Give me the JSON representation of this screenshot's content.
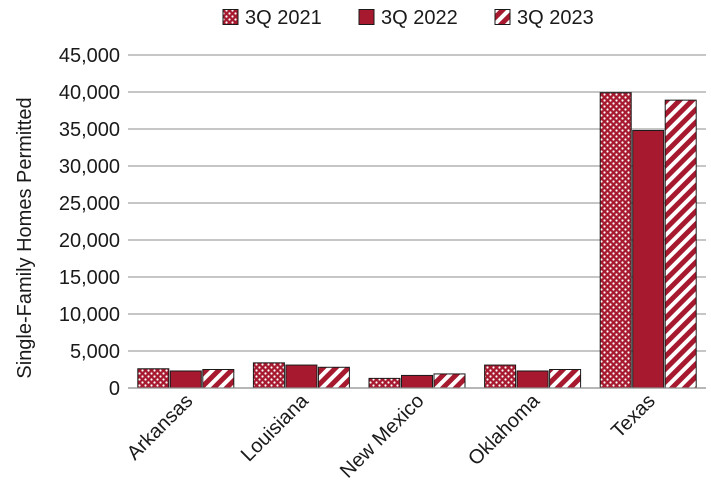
{
  "chart_data": {
    "type": "bar",
    "categories": [
      "Arkansas",
      "Louisiana",
      "New Mexico",
      "Oklahoma",
      "Texas"
    ],
    "series": [
      {
        "name": "3Q 2021",
        "values": [
          2600,
          3400,
          1300,
          3100,
          39900
        ],
        "pattern": "dots"
      },
      {
        "name": "3Q 2022",
        "values": [
          2300,
          3100,
          1700,
          2300,
          34800
        ],
        "pattern": "solid"
      },
      {
        "name": "3Q 2023",
        "values": [
          2500,
          2800,
          1900,
          2500,
          38900
        ],
        "pattern": "stripes"
      }
    ],
    "ylabel": "Single-Family Homes Permitted",
    "xlabel": "",
    "title": "",
    "ylim": [
      0,
      45000
    ],
    "yticks": [
      0,
      5000,
      10000,
      15000,
      20000,
      25000,
      30000,
      35000,
      40000,
      45000
    ],
    "ytick_labels": [
      "0",
      "5,000",
      "10,000",
      "15,000",
      "20,000",
      "25,000",
      "30,000",
      "35,000",
      "40,000",
      "45,000"
    ],
    "grid": true,
    "legend_position": "top",
    "colors": {
      "bar": "#a6192e",
      "bar_outline": "#1a1a1a",
      "pattern_light": "#ffffff",
      "grid": "#8c8c8c",
      "text": "#1a1a1a"
    }
  }
}
